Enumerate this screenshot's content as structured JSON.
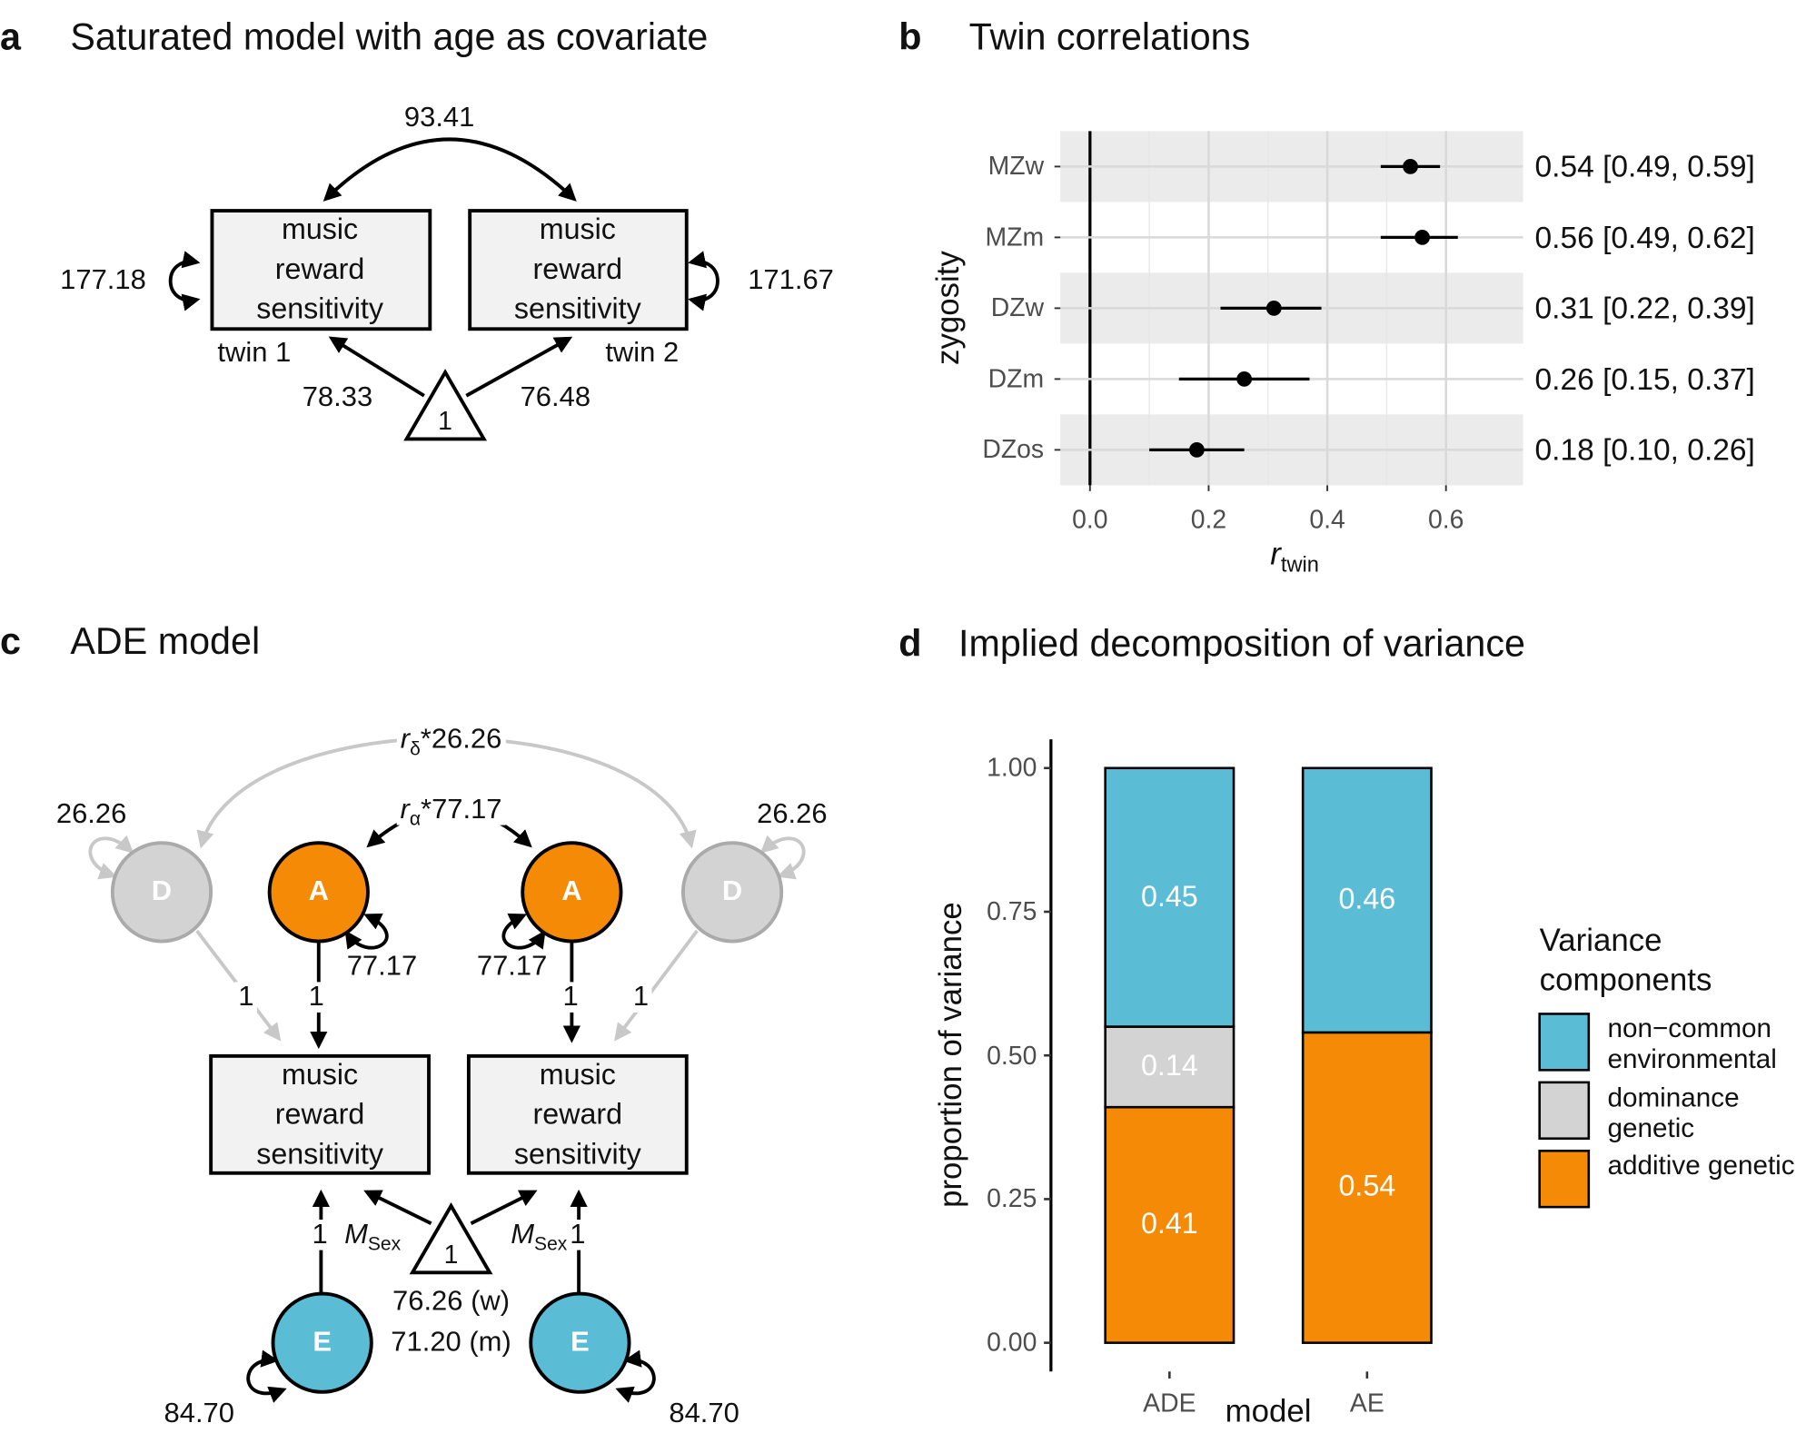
{
  "panel_a": {
    "letter": "a",
    "title": "Saturated model with age as covariate",
    "covariance": "93.41",
    "box_labels": [
      "music reward sensitivity",
      "music reward sensitivity"
    ],
    "variances": [
      "177.18",
      "171.67"
    ],
    "twin_labels": [
      "twin 1",
      "twin 2"
    ],
    "means": [
      "78.33",
      "76.48"
    ],
    "constant": "1"
  },
  "panel_c": {
    "letter": "c",
    "title": "ADE model",
    "nodes": [
      "D",
      "A",
      "A",
      "D",
      "E",
      "E"
    ],
    "d_variances": [
      "26.26",
      "26.26"
    ],
    "a_variances": [
      "77.17",
      "77.17"
    ],
    "e_variances": [
      "84.70",
      "84.70"
    ],
    "correlations": [
      {
        "symbol": "r",
        "subscript": "δ",
        "text": "*26.26"
      },
      {
        "symbol": "r",
        "subscript": "α",
        "text": "*77.17"
      }
    ],
    "loadings": [
      "1",
      "1",
      "1",
      "1",
      "1",
      "1"
    ],
    "mean_labels": [
      {
        "symbol": "M",
        "subscript": "Sex"
      },
      {
        "symbol": "M",
        "subscript": "Sex"
      }
    ],
    "means": [
      "76.26 (w)",
      "71.20 (m)"
    ],
    "constant": "1",
    "box_labels": [
      "music reward sensitivity",
      "music reward sensitivity"
    ]
  },
  "chart_data": [
    {
      "type": "errorbar",
      "letter": "b",
      "title": "Twin correlations",
      "categories": [
        "MZw",
        "MZm",
        "DZw",
        "DZm",
        "DZos"
      ],
      "values": [
        0.54,
        0.56,
        0.31,
        0.26,
        0.18
      ],
      "lower": [
        0.49,
        0.49,
        0.22,
        0.15,
        0.1
      ],
      "upper": [
        0.59,
        0.62,
        0.39,
        0.37,
        0.26
      ],
      "value_labels": [
        "0.54 [0.49, 0.59]",
        "0.56 [0.49, 0.62]",
        "0.31 [0.22, 0.39]",
        "0.26 [0.15, 0.37]",
        "0.18 [0.10, 0.26]"
      ],
      "x_label": {
        "symbol": "r",
        "subscript": "twin"
      },
      "y_label": "zygosity",
      "xlim": [
        -0.05,
        0.73
      ],
      "xticks": [
        {
          "value": 0,
          "label": "0.0"
        },
        0.2,
        0.4,
        0.6
      ],
      "color": "#000000",
      "grid": true
    },
    {
      "type": "stacked_bar",
      "letter": "d",
      "title": "Implied decomposition of variance",
      "categories": [
        "ADE",
        "AE"
      ],
      "series": [
        {
          "name": "additive genetic",
          "color": "#f58a07",
          "values": [
            0.41,
            0.54
          ],
          "value_labels": [
            "0.41",
            "0.54"
          ]
        },
        {
          "name": "dominance genetic",
          "color": "#d3d3d3",
          "values": [
            0.14,
            null
          ],
          "value_labels": [
            "0.14",
            null
          ]
        },
        {
          "name": "non−common environmental",
          "color": "#5bbcd6",
          "values": [
            0.45,
            0.46
          ],
          "value_labels": [
            "0.45",
            "0.46"
          ]
        }
      ],
      "x_label": "model",
      "y_label": "proportion of variance",
      "legend_title": "Variance components",
      "legend": "right",
      "ylim": [
        -0.05,
        1.05
      ],
      "yticks": [
        {
          "value": 0,
          "label": "0.00"
        },
        0.25,
        {
          "value": 0.5,
          "label": "0.50"
        },
        0.75,
        {
          "value": 1,
          "label": "1.00"
        }
      ]
    }
  ]
}
